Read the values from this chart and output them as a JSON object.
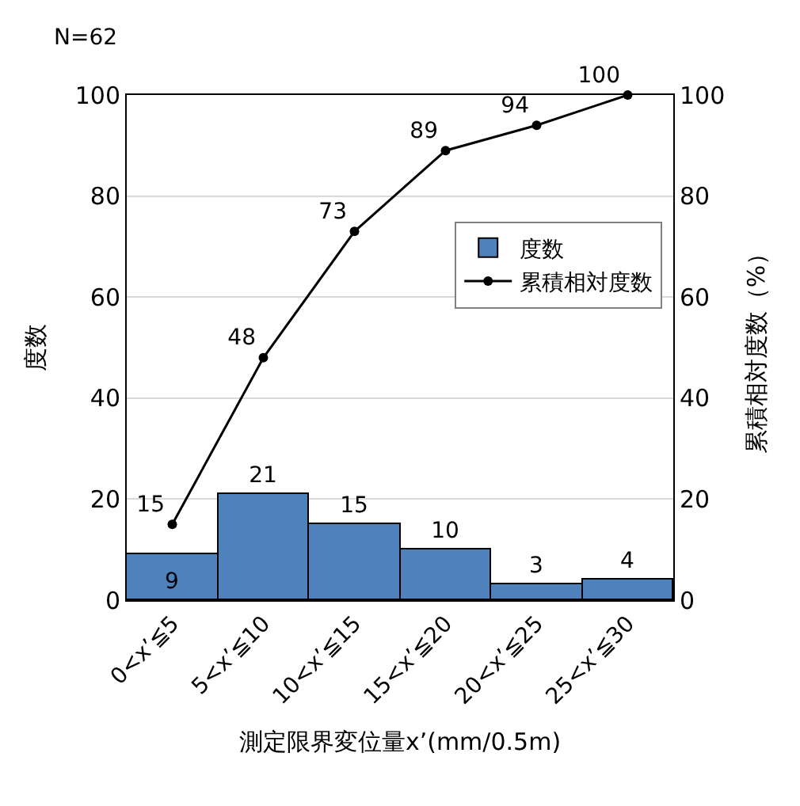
{
  "chart_data": {
    "type": "bar",
    "categories": [
      "0<x’≦5",
      "5<x’≦10",
      "10<x’≦15",
      "15<x’≦20",
      "20<x’≦25",
      "25<x’≦30"
    ],
    "series": [
      {
        "name": "度数",
        "color": "#4f81bd",
        "values": [
          9,
          21,
          15,
          10,
          3,
          4
        ]
      },
      {
        "name": "累積相対度数",
        "type": "line",
        "axis": "y2",
        "color": "#000000",
        "values": [
          15,
          48,
          73,
          89,
          94,
          100
        ]
      }
    ],
    "xlabel": "測定限界変位量x’(mm/0.5m)",
    "ylabel": "度数",
    "y2label": "累積相対度数（%）",
    "ylim": [
      0,
      100
    ],
    "yticks": [
      0,
      20,
      40,
      60,
      80,
      100
    ],
    "y2lim": [
      0,
      100
    ],
    "y2ticks": [
      0,
      20,
      40,
      60,
      80,
      100
    ],
    "annotations": [
      "N=62"
    ],
    "data_labels": true,
    "grid": "y",
    "legend": "right",
    "marker": "circle",
    "line_style": "solid"
  }
}
